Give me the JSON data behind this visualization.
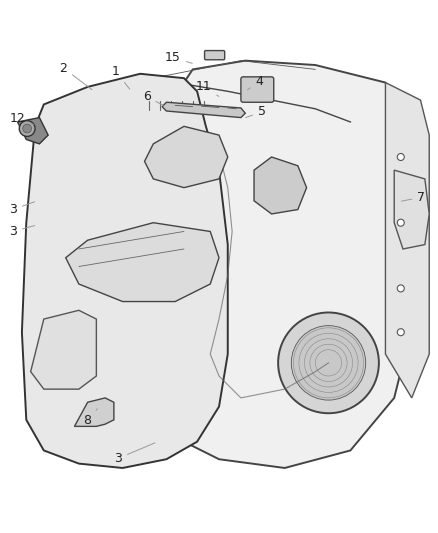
{
  "background_color": "#ffffff",
  "text_color": "#222222",
  "font_size": 9,
  "line_color": "#555555",
  "label_configs": [
    {
      "num": "1",
      "xt": 0.265,
      "yt": 0.945,
      "xp": 0.3,
      "yp": 0.9
    },
    {
      "num": "2",
      "xt": 0.145,
      "yt": 0.953,
      "xp": 0.215,
      "yp": 0.9
    },
    {
      "num": "3",
      "xt": 0.03,
      "yt": 0.63,
      "xp": 0.085,
      "yp": 0.65
    },
    {
      "num": "3",
      "xt": 0.03,
      "yt": 0.58,
      "xp": 0.085,
      "yp": 0.595
    },
    {
      "num": "3",
      "xt": 0.27,
      "yt": 0.062,
      "xp": 0.36,
      "yp": 0.1
    },
    {
      "num": "4",
      "xt": 0.592,
      "yt": 0.922,
      "xp": 0.56,
      "yp": 0.9
    },
    {
      "num": "5",
      "xt": 0.598,
      "yt": 0.853,
      "xp": 0.555,
      "yp": 0.838
    },
    {
      "num": "6",
      "xt": 0.335,
      "yt": 0.888,
      "xp": 0.378,
      "yp": 0.865
    },
    {
      "num": "7",
      "xt": 0.962,
      "yt": 0.658,
      "xp": 0.91,
      "yp": 0.648
    },
    {
      "num": "8",
      "xt": 0.2,
      "yt": 0.148,
      "xp": 0.222,
      "yp": 0.175
    },
    {
      "num": "11",
      "xt": 0.465,
      "yt": 0.91,
      "xp": 0.505,
      "yp": 0.885
    },
    {
      "num": "12",
      "xt": 0.04,
      "yt": 0.838,
      "xp": 0.082,
      "yp": 0.822
    },
    {
      "num": "15",
      "xt": 0.395,
      "yt": 0.977,
      "xp": 0.445,
      "yp": 0.962
    }
  ]
}
